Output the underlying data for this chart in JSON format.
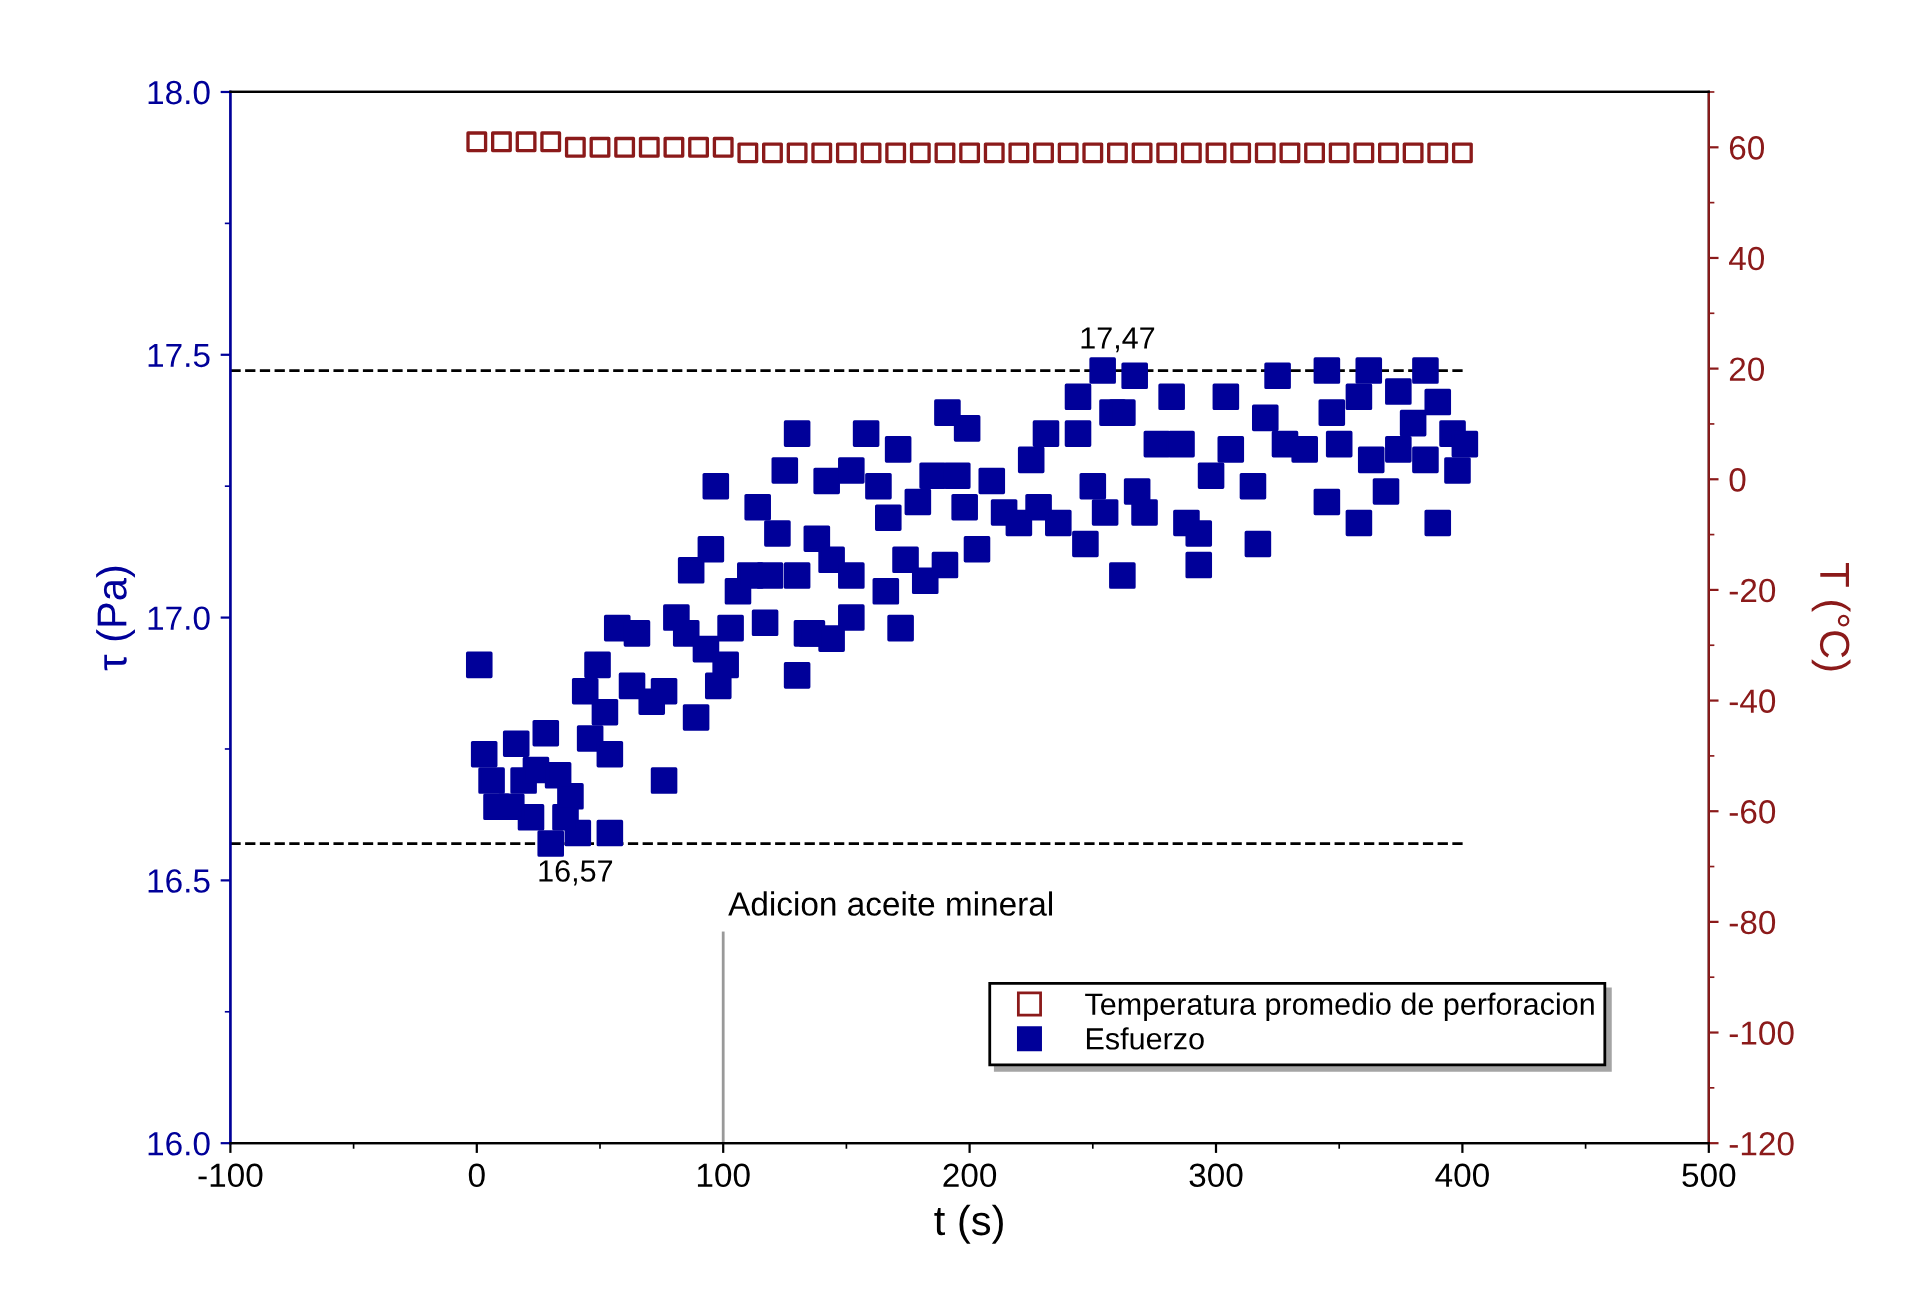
{
  "chart_data": {
    "type": "scatter",
    "xlabel": "t (s)",
    "ylabel": "τ (Pa)",
    "y2label": "T (°C)",
    "xlim": [
      -100,
      500
    ],
    "xticks": [
      -100,
      0,
      100,
      200,
      300,
      400,
      500
    ],
    "ylim": [
      16,
      18
    ],
    "yticks": [
      {
        "value": 16,
        "label": "16.0"
      },
      {
        "value": 16.5,
        "label": "16.5"
      },
      {
        "value": 17,
        "label": "17.0"
      },
      {
        "value": 17.5,
        "label": "17.5"
      },
      {
        "value": 18,
        "label": "18.0"
      }
    ],
    "y2lim": [
      -120,
      70
    ],
    "y2ticks": [
      -120,
      -100,
      -80,
      -60,
      -40,
      -20,
      0,
      20,
      40,
      60
    ],
    "marker": "square",
    "grid": false,
    "legend": "bottom right",
    "ref_lines": [
      {
        "axis": "y",
        "value": 17.47,
        "label": "17,47",
        "color": "#000000",
        "line_style": "dashed"
      },
      {
        "axis": "y",
        "value": 16.57,
        "label": "16,57",
        "color": "#000000",
        "line_style": "dashed"
      },
      {
        "axis": "x",
        "value": 100,
        "label": "Adicion aceite mineral",
        "color": "#999999",
        "line_style": "solid"
      }
    ],
    "series": [
      {
        "name": "Temperatura promedio de perforacion",
        "color": "#8b1a1a",
        "axis": "y2",
        "x": [
          0,
          10,
          20,
          30,
          40,
          50,
          60,
          70,
          80,
          90,
          100,
          110,
          120,
          130,
          140,
          150,
          160,
          170,
          180,
          190,
          200,
          210,
          220,
          230,
          240,
          250,
          260,
          270,
          280,
          290,
          300,
          310,
          320,
          330,
          340,
          350,
          360,
          370,
          380,
          390,
          400
        ],
        "values": [
          61,
          61,
          61,
          61,
          60,
          60,
          60,
          60,
          60,
          60,
          60,
          59,
          59,
          59,
          59,
          59,
          59,
          59,
          59,
          59,
          59,
          59,
          59,
          59,
          59,
          59,
          59,
          59,
          59,
          59,
          59,
          59,
          59,
          59,
          59,
          59,
          59,
          59,
          59,
          59,
          59
        ]
      },
      {
        "name": "Esfuerzo",
        "color": "#000099",
        "x": [
          1,
          3,
          6,
          8,
          16,
          19,
          22,
          30,
          28,
          33,
          38,
          41,
          54,
          36,
          14,
          24,
          44,
          49,
          46,
          54,
          52,
          63,
          71,
          57,
          65,
          76,
          76,
          81,
          85,
          89,
          93,
          101,
          98,
          87,
          95,
          103,
          106,
          117,
          111,
          119,
          130,
          122,
          114,
          97,
          125,
          130,
          130,
          134,
          138,
          144,
          152,
          136,
          144,
          152,
          142,
          152,
          158,
          163,
          171,
          167,
          166,
          172,
          174,
          179,
          185,
          182,
          190,
          191,
          199,
          195,
          198,
          203,
          209,
          214,
          220,
          225,
          231,
          228,
          236,
          247,
          244,
          254,
          267,
          258,
          244,
          250,
          255,
          262,
          262,
          268,
          271,
          276,
          282,
          286,
          288,
          293,
          293,
          298,
          304,
          306,
          315,
          317,
          320,
          325,
          328,
          336,
          345,
          347,
          345,
          350,
          358,
          358,
          362,
          363,
          369,
          374,
          374,
          380,
          385,
          385,
          390,
          390,
          396,
          398,
          401
        ],
        "values": [
          16.91,
          16.74,
          16.69,
          16.64,
          16.76,
          16.69,
          16.62,
          16.57,
          16.78,
          16.7,
          16.66,
          16.59,
          16.59,
          16.62,
          16.64,
          16.71,
          16.86,
          16.91,
          16.77,
          16.74,
          16.82,
          16.87,
          16.84,
          16.98,
          16.97,
          16.86,
          16.69,
          17.0,
          16.97,
          16.81,
          16.94,
          16.91,
          16.87,
          17.09,
          17.13,
          16.98,
          17.05,
          16.99,
          17.08,
          17.08,
          17.08,
          17.16,
          17.21,
          17.25,
          17.28,
          17.35,
          16.89,
          16.97,
          17.15,
          17.11,
          17.08,
          16.97,
          16.96,
          17.0,
          17.26,
          17.28,
          17.35,
          17.25,
          17.32,
          17.19,
          17.05,
          16.98,
          17.11,
          17.22,
          17.27,
          17.07,
          17.1,
          17.39,
          17.36,
          17.27,
          17.21,
          17.13,
          17.26,
          17.2,
          17.18,
          17.3,
          17.35,
          17.21,
          17.18,
          17.14,
          17.42,
          17.47,
          17.46,
          17.39,
          17.35,
          17.25,
          17.2,
          17.39,
          17.08,
          17.24,
          17.2,
          17.33,
          17.42,
          17.33,
          17.18,
          17.16,
          17.1,
          17.27,
          17.42,
          17.32,
          17.25,
          17.14,
          17.38,
          17.46,
          17.33,
          17.32,
          17.47,
          17.39,
          17.22,
          17.33,
          17.42,
          17.18,
          17.47,
          17.3,
          17.24,
          17.43,
          17.32,
          17.37,
          17.47,
          17.3,
          17.41,
          17.18,
          17.35,
          17.28,
          17.33
        ]
      }
    ]
  }
}
